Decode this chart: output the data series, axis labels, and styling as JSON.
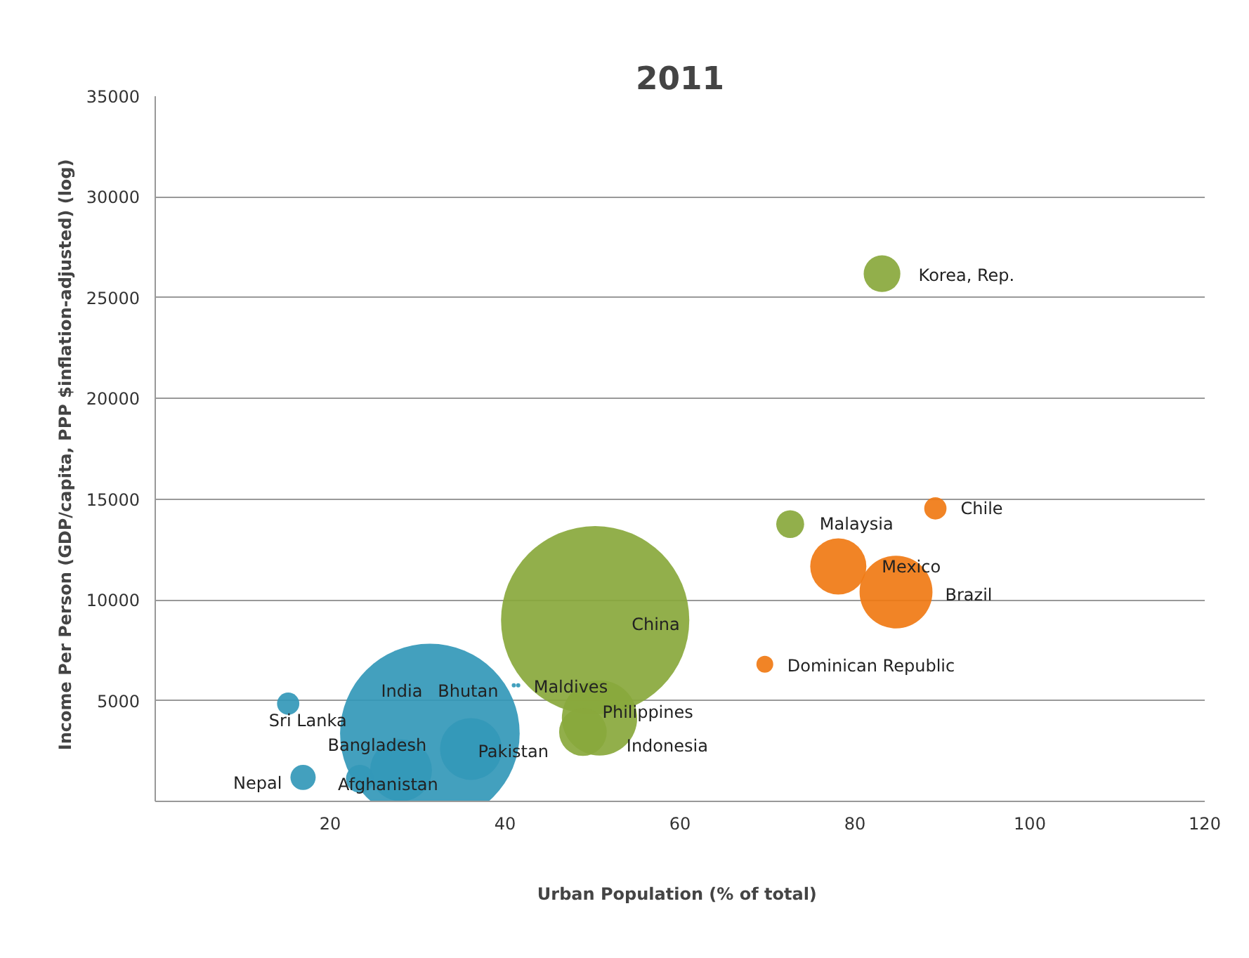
{
  "chart_data": {
    "type": "bubble",
    "title": "2011",
    "xlabel": "Urban Population  (% of total)",
    "ylabel": "Income Per Person (GDP/capita,  PPP $inflation-adjusted)  (log)",
    "xlim": [
      0,
      120
    ],
    "xticks": [
      20,
      40,
      60,
      80,
      100,
      120
    ],
    "ylim": [
      0,
      35000
    ],
    "yticks": [
      5000,
      10000,
      15000,
      20000,
      25000,
      30000,
      35000
    ],
    "grid": "y",
    "series": [
      {
        "color": "#3398b8",
        "x": [
          31.4,
          15.2,
          16.9,
          23.4,
          28.1,
          36.1,
          41.0,
          41.5
        ],
        "values": [
          3370,
          4850,
          1190,
          1120,
          1540,
          2600,
          5760,
          5760
        ],
        "sizes": [
          0.91,
          0.014,
          0.018,
          0.022,
          0.108,
          0.108,
          0.0005,
          0.0005
        ]
      },
      {
        "color": "#89a83c",
        "x": [
          50.3,
          50.8,
          48.9,
          72.6,
          83.1
        ],
        "values": [
          8990,
          4140,
          3440,
          13760,
          26190
        ],
        "sizes": [
          1,
          0.16,
          0.064,
          0.022,
          0.038
        ]
      },
      {
        "color": "#f07a14",
        "x": [
          78.1,
          84.7,
          89.2,
          69.7
        ],
        "values": [
          11660,
          10390,
          14540,
          6810
        ],
        "sizes": [
          0.089,
          0.15,
          0.014,
          0.008
        ]
      }
    ],
    "annotations": [
      {
        "text": "India",
        "x": 31.4,
        "y": 3370
      },
      {
        "text": "Sri Lanka",
        "x": 15.2,
        "y": 4850
      },
      {
        "text": "Nepal",
        "x": 16.9,
        "y": 1190
      },
      {
        "text": "Afghanistan",
        "x": 23.4,
        "y": 1120
      },
      {
        "text": "Bangladesh",
        "x": 28.1,
        "y": 1540
      },
      {
        "text": "Pakistan",
        "x": 36.1,
        "y": 2600
      },
      {
        "text": "Bhutan",
        "x": 41.0,
        "y": 5760
      },
      {
        "text": "Maldives",
        "x": 41.5,
        "y": 5760
      },
      {
        "text": "China",
        "x": 50.3,
        "y": 8990
      },
      {
        "text": "Philippines",
        "x": 50.8,
        "y": 4140
      },
      {
        "text": "Indonesia",
        "x": 48.9,
        "y": 3440
      },
      {
        "text": "Malaysia",
        "x": 72.6,
        "y": 13760
      },
      {
        "text": "Korea, Rep.",
        "x": 83.1,
        "y": 26190
      },
      {
        "text": "Mexico",
        "x": 78.1,
        "y": 11660
      },
      {
        "text": "Brazil",
        "x": 84.7,
        "y": 10390
      },
      {
        "text": "Chile",
        "x": 89.2,
        "y": 14540
      },
      {
        "text": "Dominican Republic",
        "x": 69.7,
        "y": 6810
      }
    ]
  }
}
